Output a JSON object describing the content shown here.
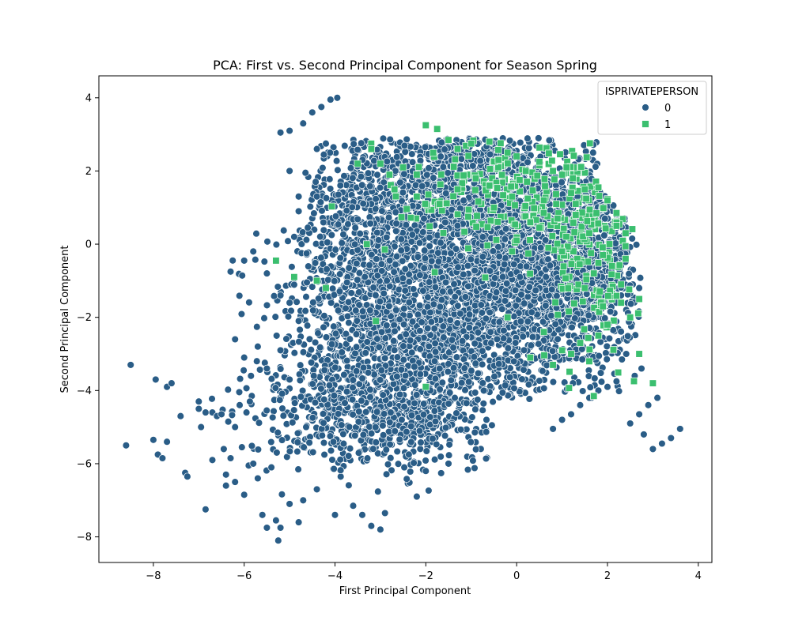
{
  "chart_data": {
    "type": "scatter",
    "title": "PCA: First vs. Second Principal Component for Season Spring",
    "xlabel": "First Principal Component",
    "ylabel": "Second Principal Component",
    "xlim": [
      -9.2,
      4.3
    ],
    "ylim": [
      -8.7,
      4.6
    ],
    "xticks": [
      -8,
      -6,
      -4,
      -2,
      0,
      2,
      4
    ],
    "yticks": [
      -8,
      -6,
      -4,
      -2,
      0,
      2,
      4
    ],
    "grid": false,
    "legend": {
      "title": "ISPRIVATEPERSON",
      "placement": "top-right",
      "entries": [
        "0",
        "1"
      ]
    },
    "series": [
      {
        "name": "0",
        "marker": "circle",
        "color": "#2a5d87",
        "points": [
          [
            -8.6,
            -5.5
          ],
          [
            -8.5,
            -3.3
          ],
          [
            -8.0,
            -5.35
          ],
          [
            -7.9,
            -5.75
          ],
          [
            -7.95,
            -3.7
          ],
          [
            -7.8,
            -5.85
          ],
          [
            -7.7,
            -3.9
          ],
          [
            -7.7,
            -5.4
          ],
          [
            -7.6,
            -3.8
          ],
          [
            -7.4,
            -4.7
          ],
          [
            -7.3,
            -6.25
          ],
          [
            -7.25,
            -6.35
          ],
          [
            -7.0,
            -4.3
          ],
          [
            -7.0,
            -4.5
          ],
          [
            -6.95,
            -5.0
          ],
          [
            -6.85,
            -4.6
          ],
          [
            -6.85,
            -7.25
          ],
          [
            -6.7,
            -5.9
          ],
          [
            -6.7,
            -4.6
          ],
          [
            -6.6,
            -4.7
          ],
          [
            -6.5,
            -4.65
          ],
          [
            -6.45,
            -5.6
          ],
          [
            -6.4,
            -6.3
          ],
          [
            -6.4,
            -6.6
          ],
          [
            -6.35,
            -4.85
          ],
          [
            -6.3,
            -5.85
          ],
          [
            -6.2,
            -6.5
          ],
          [
            -6.2,
            -5.0
          ],
          [
            -6.1,
            -4.4
          ],
          [
            -6.05,
            -5.55
          ],
          [
            -6.0,
            -6.85
          ],
          [
            -5.95,
            -4.6
          ],
          [
            -5.9,
            -6.05
          ],
          [
            -5.85,
            -3.6
          ],
          [
            -5.8,
            -6.0
          ],
          [
            -5.7,
            -6.4
          ],
          [
            -5.6,
            -7.4
          ],
          [
            -5.5,
            -7.75
          ],
          [
            -5.4,
            -6.1
          ],
          [
            -5.3,
            -7.55
          ],
          [
            -5.25,
            -8.1
          ],
          [
            -5.2,
            -7.75
          ],
          [
            -5.0,
            -7.1
          ],
          [
            -4.8,
            -7.6
          ],
          [
            -4.7,
            -7.0
          ],
          [
            -4.4,
            -6.7
          ],
          [
            -4.0,
            -7.4
          ],
          [
            -3.6,
            -7.15
          ],
          [
            -3.4,
            -7.4
          ],
          [
            -3.2,
            -7.7
          ],
          [
            -3.0,
            -7.8
          ],
          [
            -2.9,
            -7.35
          ],
          [
            -2.2,
            -6.9
          ],
          [
            -2.0,
            -6.2
          ],
          [
            -1.5,
            -6.0
          ],
          [
            -6.2,
            -2.6
          ],
          [
            -6.0,
            -3.1
          ],
          [
            -5.7,
            -2.8
          ],
          [
            -5.5,
            -3.4
          ],
          [
            -5.2,
            -2.9
          ],
          [
            -5.0,
            -3.7
          ],
          [
            -6.3,
            -0.75
          ],
          [
            -6.0,
            -0.45
          ],
          [
            -5.8,
            -0.2
          ],
          [
            -5.5,
            -0.8
          ],
          [
            -5.2,
            -1.4
          ],
          [
            -5.0,
            -1.6
          ],
          [
            -4.8,
            -2.1
          ],
          [
            -5.0,
            2.0
          ],
          [
            -5.2,
            3.05
          ],
          [
            -5.0,
            3.1
          ],
          [
            -4.7,
            3.3
          ],
          [
            -4.5,
            3.6
          ],
          [
            -4.3,
            3.75
          ],
          [
            -4.1,
            3.95
          ],
          [
            -3.95,
            4.0
          ],
          [
            -4.9,
            0.2
          ],
          [
            -4.6,
            0.45
          ],
          [
            -4.4,
            1.3
          ],
          [
            -4.4,
            2.6
          ],
          [
            -4.2,
            2.75
          ],
          [
            -4.8,
            1.3
          ],
          [
            -4.8,
            0.9
          ],
          [
            -4.65,
            1.95
          ],
          [
            0.8,
            -5.05
          ],
          [
            1.0,
            -4.8
          ],
          [
            1.2,
            -4.65
          ],
          [
            1.4,
            -4.4
          ],
          [
            1.6,
            -4.2
          ],
          [
            1.8,
            -4.0
          ],
          [
            2.0,
            -3.9
          ],
          [
            2.2,
            -3.75
          ],
          [
            2.5,
            -4.9
          ],
          [
            2.7,
            -4.65
          ],
          [
            2.9,
            -4.4
          ],
          [
            3.1,
            -4.2
          ],
          [
            3.0,
            -5.6
          ],
          [
            3.2,
            -5.45
          ],
          [
            3.4,
            -5.3
          ],
          [
            3.6,
            -5.05
          ],
          [
            2.8,
            -5.2
          ],
          [
            2.6,
            -3.6
          ],
          [
            2.75,
            -3.4
          ],
          [
            2.7,
            -1.2
          ],
          [
            2.3,
            -1.4
          ]
        ],
        "clusters": [
          {
            "cx": -0.8,
            "cy": -1.2,
            "sx": 1.7,
            "sy": 1.6,
            "n": 2600
          },
          {
            "cx": -2.8,
            "cy": -3.4,
            "sx": 1.1,
            "sy": 1.2,
            "n": 650
          },
          {
            "cx": -0.5,
            "cy": 1.0,
            "sx": 1.4,
            "sy": 1.0,
            "n": 850
          },
          {
            "cx": -3.4,
            "cy": 0.6,
            "sx": 0.8,
            "sy": 1.4,
            "n": 500
          },
          {
            "cx": 1.4,
            "cy": -0.6,
            "sx": 0.6,
            "sy": 1.3,
            "n": 450
          },
          {
            "cx": -4.2,
            "cy": -4.6,
            "sx": 0.9,
            "sy": 0.8,
            "n": 260
          },
          {
            "cx": -2.0,
            "cy": -4.9,
            "sx": 0.9,
            "sy": 0.55,
            "n": 160
          },
          {
            "cx": -1.4,
            "cy": 2.3,
            "sx": 0.9,
            "sy": 0.35,
            "n": 200
          }
        ]
      },
      {
        "name": "1",
        "marker": "square",
        "color": "#3bbf6f",
        "points": [
          [
            -2.0,
            3.25
          ],
          [
            -1.75,
            3.15
          ],
          [
            -1.5,
            2.85
          ],
          [
            -1.3,
            2.6
          ],
          [
            -1.0,
            2.75
          ],
          [
            -0.6,
            2.8
          ],
          [
            -0.4,
            2.3
          ],
          [
            -0.2,
            2.5
          ],
          [
            0.0,
            2.4
          ],
          [
            0.2,
            2.0
          ],
          [
            0.5,
            2.25
          ],
          [
            0.8,
            2.0
          ],
          [
            1.0,
            1.9
          ],
          [
            1.2,
            1.4
          ],
          [
            1.5,
            1.5
          ],
          [
            1.8,
            1.55
          ],
          [
            2.0,
            1.2
          ],
          [
            2.2,
            0.85
          ],
          [
            2.4,
            0.3
          ],
          [
            -2.5,
            2.1
          ],
          [
            -2.8,
            1.9
          ],
          [
            -3.0,
            2.2
          ],
          [
            -2.2,
            1.3
          ],
          [
            -1.7,
            1.1
          ],
          [
            -1.3,
            1.5
          ],
          [
            -0.9,
            1.8
          ],
          [
            -0.5,
            1.0
          ],
          [
            -0.1,
            1.3
          ],
          [
            0.3,
            0.6
          ],
          [
            0.6,
            1.2
          ],
          [
            0.9,
            0.7
          ],
          [
            1.3,
            0.8
          ],
          [
            1.6,
            0.3
          ],
          [
            1.9,
            -0.3
          ],
          [
            2.1,
            -0.6
          ],
          [
            2.3,
            -1.1
          ],
          [
            2.4,
            -0.4
          ],
          [
            2.2,
            0.5
          ],
          [
            1.7,
            -0.8
          ],
          [
            1.5,
            -1.2
          ],
          [
            1.9,
            -1.7
          ],
          [
            2.0,
            -2.2
          ],
          [
            2.3,
            -1.6
          ],
          [
            2.5,
            -2.0
          ],
          [
            2.7,
            -1.5
          ],
          [
            1.8,
            -2.5
          ],
          [
            1.4,
            -2.7
          ],
          [
            1.2,
            -3.0
          ],
          [
            1.6,
            -3.2
          ],
          [
            0.8,
            -3.3
          ],
          [
            1.0,
            -2.9
          ],
          [
            0.6,
            -2.4
          ],
          [
            0.3,
            -3.1
          ],
          [
            1.7,
            -4.15
          ],
          [
            3.0,
            -3.8
          ],
          [
            2.7,
            -3.0
          ],
          [
            -5.3,
            -0.45
          ],
          [
            -4.9,
            -0.9
          ],
          [
            -4.4,
            -1.0
          ],
          [
            -4.2,
            -1.2
          ],
          [
            -3.1,
            -2.1
          ],
          [
            -3.3,
            0.0
          ],
          [
            -3.5,
            2.2
          ],
          [
            -3.2,
            2.6
          ],
          [
            -2.0,
            -3.9
          ],
          [
            -0.2,
            -2.0
          ],
          [
            0.5,
            0.45
          ],
          [
            -0.6,
            1.6
          ],
          [
            0.0,
            0.1
          ],
          [
            -0.1,
            -0.2
          ],
          [
            1.0,
            -0.2
          ],
          [
            0.7,
            -0.1
          ],
          [
            1.1,
            2.1
          ],
          [
            1.3,
            1.1
          ]
        ],
        "clusters": [
          {
            "cx": 0.4,
            "cy": 1.3,
            "sx": 1.5,
            "sy": 0.8,
            "n": 200
          },
          {
            "cx": 1.6,
            "cy": -0.6,
            "sx": 0.5,
            "sy": 1.3,
            "n": 120
          }
        ]
      }
    ]
  }
}
